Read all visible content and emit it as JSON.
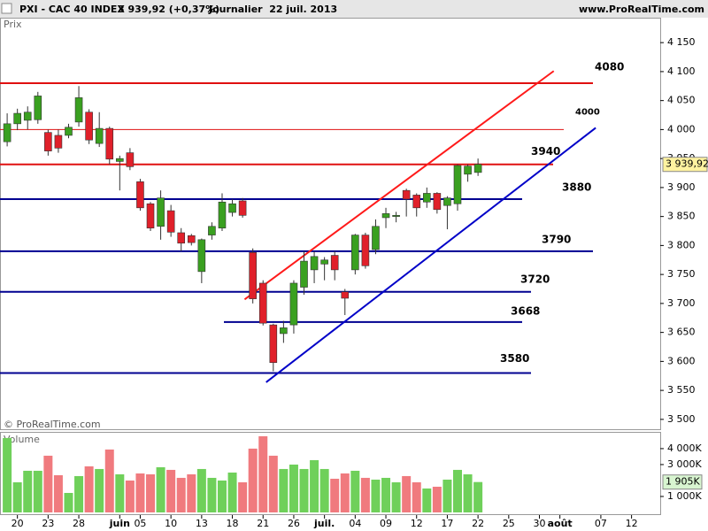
{
  "chart_data": {
    "type": "candlestick",
    "symbol": "PXI - CAC 40 INDEX",
    "last_quote": "3 939,92 (+0,37%)",
    "period": "Journalier  22 juil. 2013",
    "website": "www.ProRealTime.com",
    "price_label": "Prix",
    "copyright": "© ProRealTime.com",
    "volume_label": "Volume",
    "up_color": "#3aa020",
    "down_color": "#e0202a",
    "open": [
      3979,
      4010,
      4016,
      4017,
      3995,
      3990,
      3990,
      4013,
      4030,
      3976,
      4002,
      3945,
      3960,
      3910,
      3872,
      3833,
      3860,
      3822,
      3817,
      3755,
      3818,
      3830,
      3857,
      3877,
      3788,
      3735,
      3663,
      3648,
      3663,
      3728,
      3758,
      3768,
      3783,
      3720,
      3758,
      3818,
      3793,
      3848,
      3850,
      3895,
      3887,
      3875,
      3890,
      3869,
      3872,
      3923,
      3926
    ],
    "high": [
      4028,
      4036,
      4040,
      4065,
      4000,
      4000,
      4010,
      4075,
      4035,
      4030,
      4005,
      3955,
      3968,
      3915,
      3875,
      3895,
      3870,
      3830,
      3820,
      3812,
      3840,
      3890,
      3880,
      3882,
      3795,
      3740,
      3665,
      3670,
      3740,
      3790,
      3790,
      3780,
      3790,
      3725,
      3820,
      3822,
      3845,
      3865,
      3858,
      3898,
      3890,
      3900,
      3892,
      3885,
      3940,
      3940,
      3950
    ],
    "low": [
      3971,
      3999,
      4000,
      4010,
      3955,
      3960,
      3985,
      4005,
      3975,
      3970,
      3940,
      3895,
      3930,
      3860,
      3825,
      3810,
      3815,
      3790,
      3800,
      3735,
      3810,
      3825,
      3850,
      3848,
      3700,
      3662,
      3583,
      3632,
      3648,
      3715,
      3735,
      3740,
      3740,
      3680,
      3750,
      3760,
      3785,
      3830,
      3840,
      3850,
      3850,
      3865,
      3855,
      3828,
      3860,
      3910,
      3920
    ],
    "close": [
      4010,
      4028,
      4030,
      4058,
      3963,
      3968,
      4004,
      4055,
      3982,
      4002,
      3949,
      3950,
      3936,
      3865,
      3830,
      3882,
      3823,
      3804,
      3805,
      3810,
      3833,
      3875,
      3872,
      3852,
      3708,
      3666,
      3598,
      3658,
      3735,
      3773,
      3781,
      3775,
      3758,
      3709,
      3818,
      3765,
      3833,
      3855,
      3852,
      3880,
      3865,
      3890,
      3862,
      3882,
      3938,
      3937,
      3940
    ],
    "volume": [
      4667,
      1889,
      2611,
      2611,
      3556,
      2333,
      1222,
      2278,
      2889,
      2722,
      3944,
      2389,
      2000,
      2444,
      2389,
      2833,
      2667,
      2167,
      2389,
      2722,
      2167,
      2000,
      2500,
      1889,
      4000,
      4778,
      3556,
      2722,
      3000,
      2722,
      3278,
      2722,
      2111,
      2444,
      2611,
      2167,
      2056,
      2167,
      1889,
      2278,
      1889,
      1500,
      1611,
      2056,
      2667,
      2389,
      1905
    ],
    "xlim": [
      -0.7,
      63.8
    ],
    "xticks": [
      {
        "value": 1,
        "label": "20"
      },
      {
        "value": 4,
        "label": "23"
      },
      {
        "value": 7,
        "label": "28"
      },
      {
        "value": 11,
        "label": "juin"
      },
      {
        "value": 13,
        "label": "05"
      },
      {
        "value": 16,
        "label": "10"
      },
      {
        "value": 19,
        "label": "13"
      },
      {
        "value": 22,
        "label": "18"
      },
      {
        "value": 25,
        "label": "21"
      },
      {
        "value": 28,
        "label": "26"
      },
      {
        "value": 31,
        "label": "juil."
      },
      {
        "value": 34,
        "label": "04"
      },
      {
        "value": 37,
        "label": "09"
      },
      {
        "value": 40,
        "label": "12"
      },
      {
        "value": 43,
        "label": "17"
      },
      {
        "value": 46,
        "label": "22"
      },
      {
        "value": 49,
        "label": "25"
      },
      {
        "value": 52,
        "label": "30"
      },
      {
        "value": 54,
        "label": "août"
      },
      {
        "value": 58,
        "label": "07"
      },
      {
        "value": 61,
        "label": "12"
      }
    ],
    "ylim": [
      3483,
      4193
    ],
    "yticks": [
      {
        "value": 4150,
        "label": "4 150"
      },
      {
        "value": 4100,
        "label": "4 100"
      },
      {
        "value": 4050,
        "label": "4 050"
      },
      {
        "value": 4000,
        "label": "4 000"
      },
      {
        "value": 3950,
        "label": "3 950"
      },
      {
        "value": 3900,
        "label": "3 900"
      },
      {
        "value": 3850,
        "label": "3 850"
      },
      {
        "value": 3800,
        "label": "3 800"
      },
      {
        "value": 3750,
        "label": "3 750"
      },
      {
        "value": 3700,
        "label": "3 700"
      },
      {
        "value": 3650,
        "label": "3 650"
      },
      {
        "value": 3600,
        "label": "3 600"
      },
      {
        "value": 3550,
        "label": "3 550"
      },
      {
        "value": 3500,
        "label": "3 500"
      }
    ],
    "volume_ylim": [
      0,
      5050
    ],
    "volume_yticks": [
      {
        "value": 4000,
        "label": "4 000K"
      },
      {
        "value": 3000,
        "label": "3 000K"
      },
      {
        "value": 1000,
        "label": "1 000K"
      }
    ],
    "last_price": {
      "value": 3939.92,
      "label": "3 939,92"
    },
    "last_volume": {
      "value": 1905,
      "label": "1 905K"
    },
    "levels": [
      {
        "value": 4080,
        "color": "#e01010"
      },
      {
        "value": 4000,
        "color": "#e01010"
      },
      {
        "value": 3940,
        "color": "#e01010"
      },
      {
        "value": 3880,
        "color": "#000090"
      },
      {
        "value": 3790,
        "color": "#000090"
      },
      {
        "value": 3720,
        "color": "#000090"
      },
      {
        "value": 3668,
        "color": "#000090"
      },
      {
        "value": 3580,
        "color": "#000090"
      }
    ],
    "trendlines": [
      {
        "color": "#ff1a1a",
        "x": [
          23.2,
          53.4
        ],
        "y": [
          3707,
          4101
        ]
      },
      {
        "color": "#0000c8",
        "x": [
          25.3,
          57.5
        ],
        "y": [
          3564,
          4003
        ]
      }
    ]
  }
}
